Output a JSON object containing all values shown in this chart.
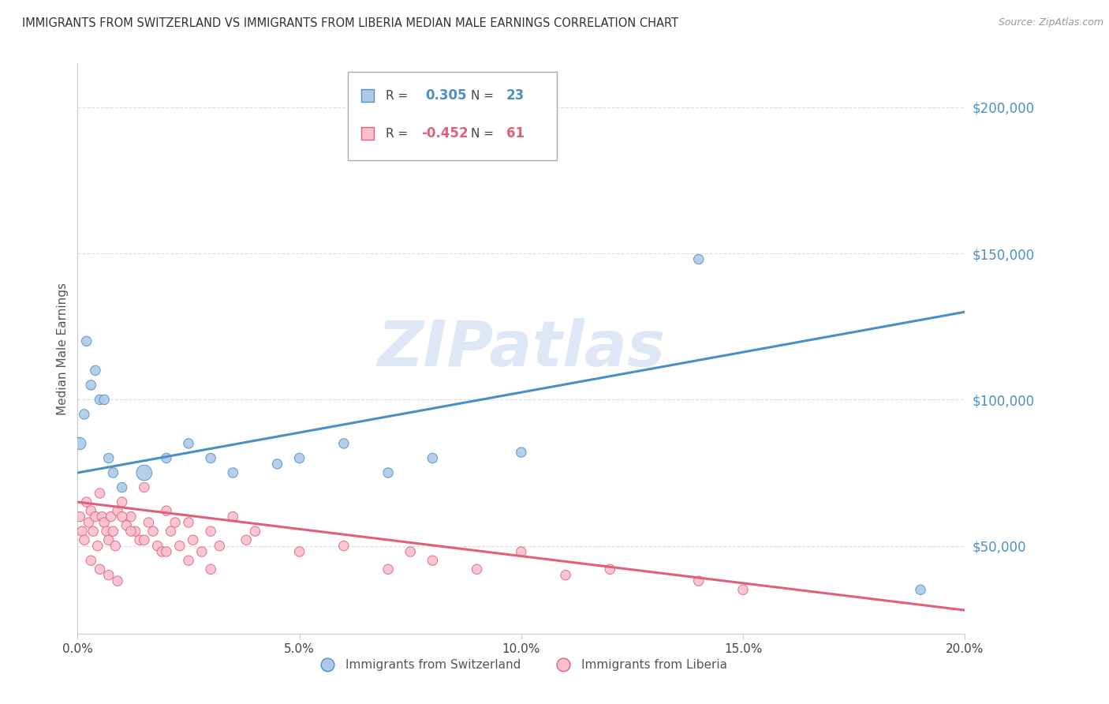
{
  "title": "IMMIGRANTS FROM SWITZERLAND VS IMMIGRANTS FROM LIBERIA MEDIAN MALE EARNINGS CORRELATION CHART",
  "source": "Source: ZipAtlas.com",
  "ylabel": "Median Male Earnings",
  "xlabel_ticks": [
    "0.0%",
    "5.0%",
    "10.0%",
    "15.0%",
    "20.0%"
  ],
  "xlabel_vals": [
    0.0,
    5.0,
    10.0,
    15.0,
    20.0
  ],
  "ytick_vals": [
    50000,
    100000,
    150000,
    200000
  ],
  "ytick_labels": [
    "$50,000",
    "$100,000",
    "$150,000",
    "$200,000"
  ],
  "ylim": [
    20000,
    215000
  ],
  "xlim": [
    0,
    20
  ],
  "series": [
    {
      "name": "Immigrants from Switzerland",
      "color": "#aec9e8",
      "edge_color": "#4a90c4",
      "R": 0.305,
      "N": 23,
      "x": [
        0.05,
        0.15,
        0.3,
        0.5,
        0.7,
        0.8,
        1.0,
        1.5,
        2.0,
        2.5,
        3.0,
        3.5,
        4.5,
        5.0,
        6.0,
        7.0,
        8.0,
        10.0,
        14.0,
        19.0,
        0.2,
        0.4,
        0.6
      ],
      "y": [
        85000,
        95000,
        105000,
        100000,
        80000,
        75000,
        70000,
        75000,
        80000,
        85000,
        80000,
        75000,
        78000,
        80000,
        85000,
        75000,
        80000,
        82000,
        148000,
        35000,
        120000,
        110000,
        100000
      ],
      "sizes": [
        120,
        80,
        80,
        80,
        80,
        80,
        80,
        200,
        80,
        80,
        80,
        80,
        80,
        80,
        80,
        80,
        80,
        80,
        80,
        80,
        80,
        80,
        80
      ]
    },
    {
      "name": "Immigrants from Liberia",
      "color": "#f9c0cc",
      "edge_color": "#e0607a",
      "R": -0.452,
      "N": 61,
      "x": [
        0.05,
        0.1,
        0.15,
        0.2,
        0.25,
        0.3,
        0.35,
        0.4,
        0.45,
        0.5,
        0.55,
        0.6,
        0.65,
        0.7,
        0.75,
        0.8,
        0.85,
        0.9,
        1.0,
        1.1,
        1.2,
        1.3,
        1.4,
        1.5,
        1.6,
        1.7,
        1.8,
        1.9,
        2.0,
        2.1,
        2.2,
        2.3,
        2.5,
        2.6,
        2.8,
        3.0,
        3.2,
        3.5,
        3.8,
        4.0,
        5.0,
        6.0,
        7.0,
        7.5,
        8.0,
        9.0,
        10.0,
        11.0,
        12.0,
        14.0,
        15.0,
        0.3,
        0.5,
        0.7,
        0.9,
        1.0,
        1.2,
        1.5,
        2.0,
        2.5,
        3.0
      ],
      "y": [
        60000,
        55000,
        52000,
        65000,
        58000,
        62000,
        55000,
        60000,
        50000,
        68000,
        60000,
        58000,
        55000,
        52000,
        60000,
        55000,
        50000,
        62000,
        65000,
        57000,
        60000,
        55000,
        52000,
        70000,
        58000,
        55000,
        50000,
        48000,
        62000,
        55000,
        58000,
        50000,
        58000,
        52000,
        48000,
        55000,
        50000,
        60000,
        52000,
        55000,
        48000,
        50000,
        42000,
        48000,
        45000,
        42000,
        48000,
        40000,
        42000,
        38000,
        35000,
        45000,
        42000,
        40000,
        38000,
        60000,
        55000,
        52000,
        48000,
        45000,
        42000
      ],
      "sizes": [
        80,
        80,
        80,
        80,
        80,
        80,
        80,
        80,
        80,
        80,
        80,
        80,
        80,
        80,
        80,
        80,
        80,
        80,
        80,
        80,
        80,
        80,
        80,
        80,
        80,
        80,
        80,
        80,
        80,
        80,
        80,
        80,
        80,
        80,
        80,
        80,
        80,
        80,
        80,
        80,
        80,
        80,
        80,
        80,
        80,
        80,
        80,
        80,
        80,
        80,
        80,
        80,
        80,
        80,
        80,
        80,
        80,
        80,
        80,
        80,
        80
      ]
    }
  ],
  "swiss_line": {
    "x0": 0,
    "y0": 75000,
    "x1": 20,
    "y1": 130000
  },
  "lib_line": {
    "x0": 0,
    "y0": 65000,
    "x1": 20,
    "y1": 28000
  },
  "watermark": "ZIPatlas",
  "watermark_color": "#c8d8f0",
  "background_color": "#ffffff",
  "grid_color": "#dddddd",
  "title_color": "#333333",
  "axis_tick_color": "#4a90c4"
}
